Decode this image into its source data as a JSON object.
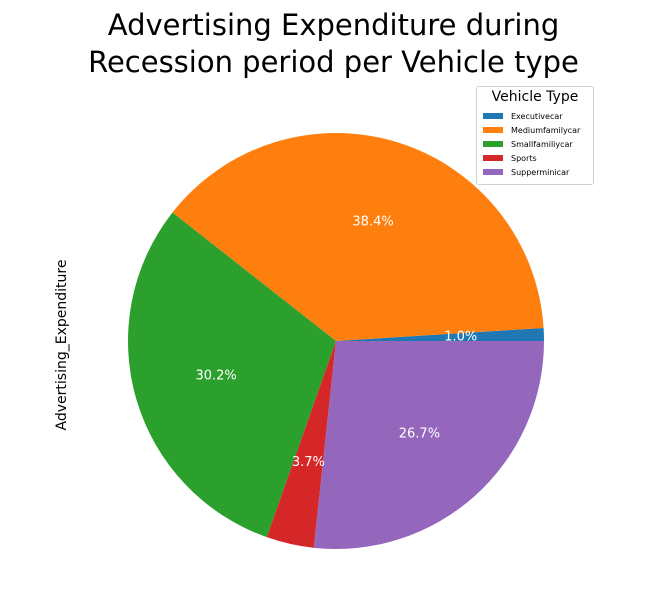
{
  "chart_data": {
    "type": "pie",
    "title": "Advertising Expenditure during\nRecession period per Vehicle type",
    "title_lines": [
      "Advertising Expenditure during",
      "Recession period per Vehicle type"
    ],
    "ylabel": "Advertising_Expenditure",
    "legend_title": "Vehicle Type",
    "legend_position": "top-right",
    "categories": [
      "Executivecar",
      "Mediumfamilycar",
      "Smallfamiliycar",
      "Sports",
      "Supperminicar"
    ],
    "values": [
      1.0,
      38.4,
      30.2,
      3.7,
      26.7
    ],
    "value_labels": [
      "1.0%",
      "38.4%",
      "30.2%",
      "3.7%",
      "26.7%"
    ],
    "colors": [
      "#1f77b4",
      "#ff7f0e",
      "#2ca02c",
      "#d62728",
      "#9467bd"
    ]
  }
}
